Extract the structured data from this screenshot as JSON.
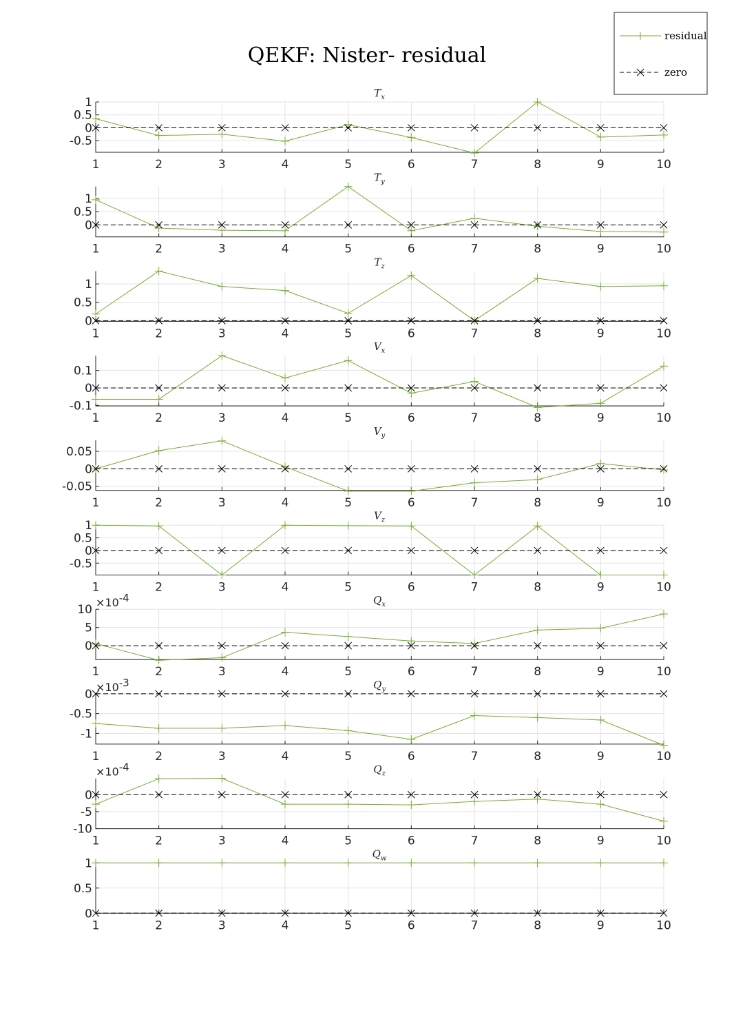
{
  "figure": {
    "title": "QEKF: Nister- residual",
    "colors": {
      "residual": "#77ac30",
      "zero": "#000000",
      "grid": "#e3e3e3",
      "axis": "#262626"
    }
  },
  "legend": {
    "placement": "top-right",
    "entries": [
      {
        "label": "residual",
        "marker": "plus",
        "line": "solid",
        "color": "#77ac30"
      },
      {
        "label": "zero",
        "marker": "x",
        "line": "dashed",
        "color": "#000000"
      }
    ]
  },
  "chart_data": [
    {
      "type": "line",
      "title": "T",
      "subscript": "x",
      "x": [
        1,
        2,
        3,
        4,
        5,
        6,
        7,
        8,
        9,
        10
      ],
      "xlim": [
        1,
        10
      ],
      "ylim": [
        -0.95,
        1.0
      ],
      "yticks": [
        1,
        0.5,
        0,
        -0.5
      ],
      "ytick_labels": [
        "1",
        "0.5",
        "0",
        "-0.5"
      ],
      "multiplier": "",
      "series": [
        {
          "name": "residual",
          "values": [
            0.35,
            -0.3,
            -0.25,
            -0.52,
            0.12,
            -0.38,
            -0.98,
            1.0,
            -0.36,
            -0.28
          ]
        },
        {
          "name": "zero",
          "values": [
            0,
            0,
            0,
            0,
            0,
            0,
            0,
            0,
            0,
            0
          ]
        }
      ]
    },
    {
      "type": "line",
      "title": "T",
      "subscript": "y",
      "x": [
        1,
        2,
        3,
        4,
        5,
        6,
        7,
        8,
        9,
        10
      ],
      "xlim": [
        1,
        10
      ],
      "ylim": [
        -0.45,
        1.45
      ],
      "yticks": [
        1,
        0.5,
        0
      ],
      "ytick_labels": [
        "1",
        "0.5",
        "0"
      ],
      "multiplier": "",
      "series": [
        {
          "name": "residual",
          "values": [
            0.95,
            -0.12,
            -0.2,
            -0.22,
            1.45,
            -0.22,
            0.25,
            -0.05,
            -0.25,
            -0.27
          ]
        },
        {
          "name": "zero",
          "values": [
            0,
            0,
            0,
            0,
            0,
            0,
            0,
            0,
            0,
            0
          ]
        }
      ]
    },
    {
      "type": "line",
      "title": "T",
      "subscript": "z",
      "x": [
        1,
        2,
        3,
        4,
        5,
        6,
        7,
        8,
        9,
        10
      ],
      "xlim": [
        1,
        10
      ],
      "ylim": [
        -0.02,
        1.35
      ],
      "yticks": [
        1,
        0.5,
        0
      ],
      "ytick_labels": [
        "1",
        "0.5",
        "0"
      ],
      "multiplier": "",
      "series": [
        {
          "name": "residual",
          "values": [
            0.18,
            1.35,
            0.93,
            0.82,
            0.2,
            1.23,
            0.0,
            1.15,
            0.93,
            0.95
          ]
        },
        {
          "name": "zero",
          "values": [
            0,
            0,
            0,
            0,
            0,
            0,
            0,
            0,
            0,
            0
          ]
        }
      ]
    },
    {
      "type": "line",
      "title": "V",
      "subscript": "x",
      "x": [
        1,
        2,
        3,
        4,
        5,
        6,
        7,
        8,
        9,
        10
      ],
      "xlim": [
        1,
        10
      ],
      "ylim": [
        -0.103,
        0.185
      ],
      "yticks": [
        0.1,
        0,
        -0.1
      ],
      "ytick_labels": [
        "0.1",
        "0",
        "-0.1"
      ],
      "multiplier": "",
      "series": [
        {
          "name": "residual",
          "values": [
            -0.065,
            -0.065,
            0.185,
            0.057,
            0.157,
            -0.03,
            0.037,
            -0.112,
            -0.088,
            0.125
          ]
        },
        {
          "name": "zero",
          "values": [
            0,
            0,
            0,
            0,
            0,
            0,
            0,
            0,
            0,
            0
          ]
        }
      ]
    },
    {
      "type": "line",
      "title": "V",
      "subscript": "y",
      "x": [
        1,
        2,
        3,
        4,
        5,
        6,
        7,
        8,
        9,
        10
      ],
      "xlim": [
        1,
        10
      ],
      "ylim": [
        -0.062,
        0.082
      ],
      "yticks": [
        0.05,
        0,
        -0.05
      ],
      "ytick_labels": [
        "0.05",
        "0",
        "-0.05"
      ],
      "multiplier": "",
      "series": [
        {
          "name": "residual",
          "values": [
            0.0,
            0.052,
            0.08,
            0.006,
            -0.064,
            -0.064,
            -0.04,
            -0.031,
            0.015,
            -0.003
          ]
        },
        {
          "name": "zero",
          "values": [
            0,
            0,
            0,
            0,
            0,
            0,
            0,
            0,
            0,
            0
          ]
        }
      ]
    },
    {
      "type": "line",
      "title": "V",
      "subscript": "z",
      "x": [
        1,
        2,
        3,
        4,
        5,
        6,
        7,
        8,
        9,
        10
      ],
      "xlim": [
        1,
        10
      ],
      "ylim": [
        -0.97,
        1.02
      ],
      "yticks": [
        1,
        0.5,
        0,
        -0.5
      ],
      "ytick_labels": [
        "1",
        "0.5",
        "0",
        "-0.5"
      ],
      "multiplier": "",
      "series": [
        {
          "name": "residual",
          "values": [
            1.0,
            0.97,
            -0.97,
            1.0,
            0.98,
            0.97,
            -0.97,
            0.97,
            -0.97,
            -0.97
          ]
        },
        {
          "name": "zero",
          "values": [
            0,
            0,
            0,
            0,
            0,
            0,
            0,
            0,
            0,
            0
          ]
        }
      ]
    },
    {
      "type": "line",
      "title": "Q",
      "subscript": "x",
      "x": [
        1,
        2,
        3,
        4,
        5,
        6,
        7,
        8,
        9,
        10
      ],
      "xlim": [
        1,
        10
      ],
      "ylim": [
        -3.8,
        10
      ],
      "yticks": [
        10,
        5,
        0
      ],
      "ytick_labels": [
        "10",
        "5",
        "0"
      ],
      "multiplier": "×10-4",
      "series": [
        {
          "name": "residual",
          "values": [
            0.6,
            -4.0,
            -3.3,
            3.7,
            2.5,
            1.3,
            0.6,
            4.3,
            4.8,
            8.7
          ]
        },
        {
          "name": "zero",
          "values": [
            0,
            0,
            0,
            0,
            0,
            0,
            0,
            0,
            0,
            0
          ]
        }
      ]
    },
    {
      "type": "line",
      "title": "Q",
      "subscript": "y",
      "x": [
        1,
        2,
        3,
        4,
        5,
        6,
        7,
        8,
        9,
        10
      ],
      "xlim": [
        1,
        10
      ],
      "ylim": [
        -1.27,
        0.0
      ],
      "yticks": [
        0,
        -0.5,
        -1
      ],
      "ytick_labels": [
        "0",
        "-0.5",
        "-1"
      ],
      "multiplier": "×10-3",
      "series": [
        {
          "name": "residual",
          "values": [
            -0.75,
            -0.87,
            -0.87,
            -0.8,
            -0.93,
            -1.15,
            -0.55,
            -0.6,
            -0.66,
            -1.3
          ]
        },
        {
          "name": "zero",
          "values": [
            0,
            0,
            0,
            0,
            0,
            0,
            0,
            0,
            0,
            0
          ]
        }
      ]
    },
    {
      "type": "line",
      "title": "Q",
      "subscript": "z",
      "x": [
        1,
        2,
        3,
        4,
        5,
        6,
        7,
        8,
        9,
        10
      ],
      "xlim": [
        1,
        10
      ],
      "ylim": [
        -10,
        4.8
      ],
      "yticks": [
        0,
        -5,
        -10
      ],
      "ytick_labels": [
        "0",
        "-5",
        "-10"
      ],
      "multiplier": "×10-4",
      "series": [
        {
          "name": "residual",
          "values": [
            -2.8,
            4.7,
            4.8,
            -2.8,
            -2.8,
            -3.0,
            -2.0,
            -1.3,
            -2.8,
            -7.8
          ]
        },
        {
          "name": "zero",
          "values": [
            0,
            0,
            0,
            0,
            0,
            0,
            0,
            0,
            0,
            0
          ]
        }
      ]
    },
    {
      "type": "line",
      "title": "Q",
      "subscript": "w",
      "x": [
        1,
        2,
        3,
        4,
        5,
        6,
        7,
        8,
        9,
        10
      ],
      "xlim": [
        1,
        10
      ],
      "ylim": [
        0,
        1.0
      ],
      "yticks": [
        1,
        0.5,
        0
      ],
      "ytick_labels": [
        "1",
        "0.5",
        "0"
      ],
      "multiplier": "",
      "series": [
        {
          "name": "residual",
          "values": [
            1,
            1,
            1,
            1,
            1,
            1,
            1,
            1,
            1,
            1
          ]
        },
        {
          "name": "zero",
          "values": [
            0,
            0,
            0,
            0,
            0,
            0,
            0,
            0,
            0,
            0
          ]
        }
      ]
    }
  ]
}
